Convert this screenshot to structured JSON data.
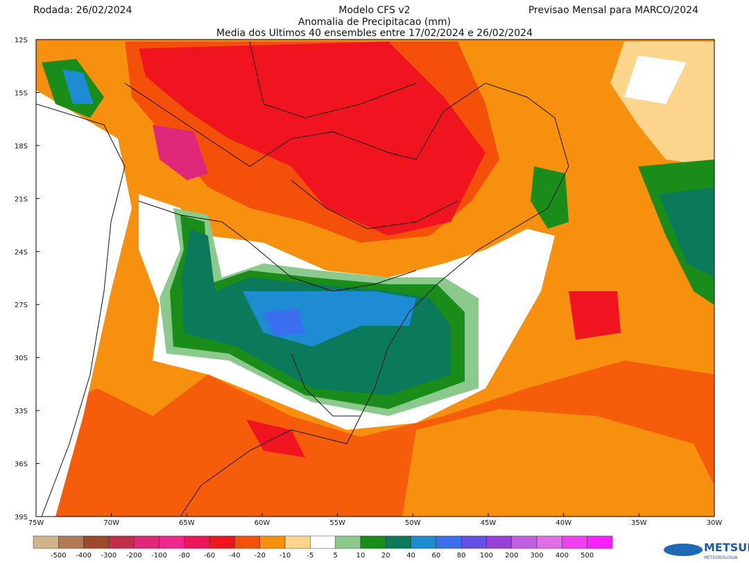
{
  "header": {
    "run": "Rodada: 26/02/2024",
    "model": "Modelo CFS v2",
    "variable": "Anomalia de Precipitacao (mm)",
    "subtitle": "Media dos Ultimos 40 ensembles entre 17/02/2024 e 26/02/2024",
    "forecast": "Previsao Mensal para MARCO/2024"
  },
  "map": {
    "lat_labels": [
      "12S",
      "15S",
      "18S",
      "21S",
      "24S",
      "27S",
      "30S",
      "33S",
      "36S",
      "39S"
    ],
    "lon_labels": [
      "75W",
      "70W",
      "65W",
      "60W",
      "55W",
      "50W",
      "45W",
      "40W",
      "35W",
      "30W"
    ]
  },
  "colorbar": {
    "labels": [
      -500,
      -400,
      -300,
      -200,
      -100,
      -80,
      -60,
      -40,
      -20,
      -10,
      -5,
      5,
      10,
      20,
      40,
      60,
      80,
      100,
      200,
      300,
      400,
      500
    ],
    "colors": [
      "#d2b48c",
      "#b07a55",
      "#9c4a2a",
      "#c0304a",
      "#e0287a",
      "#f0288c",
      "#f0145a",
      "#f0141e",
      "#f5500a",
      "#f7900f",
      "#fcd58c",
      "#ffffff",
      "#8cc98c",
      "#1a8c1a",
      "#0a7a5a",
      "#1e8cd2",
      "#3c6ef0",
      "#6450e6",
      "#9640d8",
      "#c060e0",
      "#e06ee6",
      "#f040f0",
      "#ff1eff"
    ]
  },
  "logo": {
    "name": "METSUL",
    "tagline": "METEOROLOGIA"
  }
}
